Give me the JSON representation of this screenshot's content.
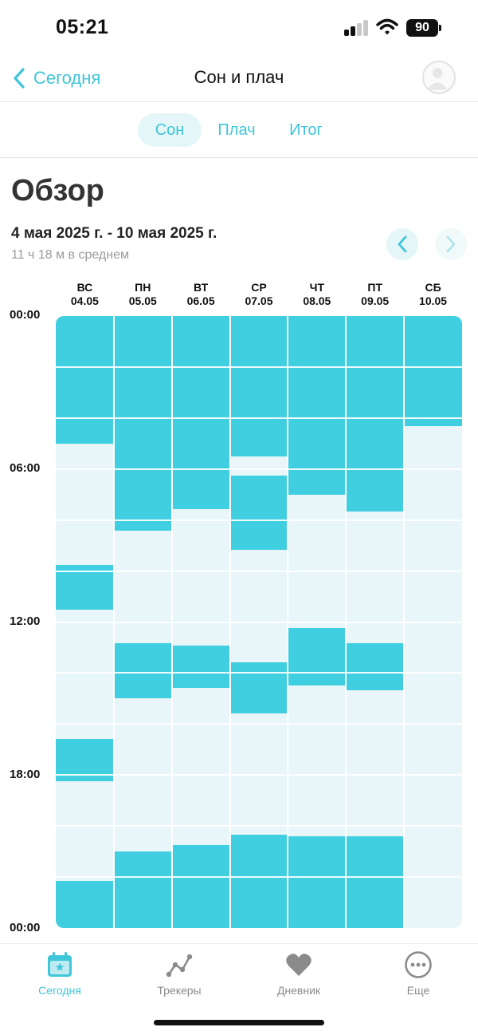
{
  "status_bar": {
    "time": "05:21",
    "battery": "90"
  },
  "header": {
    "back_label": "Сегодня",
    "title": "Сон и плач"
  },
  "tabs": [
    {
      "label": "Сон",
      "active": true
    },
    {
      "label": "Плач",
      "active": false
    },
    {
      "label": "Итог",
      "active": false
    }
  ],
  "overview": {
    "title": "Обзор",
    "date_range": "4 мая 2025 г. - 10 мая 2025 г.",
    "average": "11 ч 18 м в среднем"
  },
  "chart_data": {
    "type": "bar",
    "y_labels": [
      "00:00",
      "06:00",
      "12:00",
      "18:00",
      "00:00"
    ],
    "days": [
      {
        "dow": "ВС",
        "date": "04.05",
        "sleep": [
          [
            "00:00",
            "05:00"
          ],
          [
            "09:45",
            "11:30"
          ],
          [
            "16:35",
            "18:15"
          ],
          [
            "22:10",
            "24:00"
          ]
        ]
      },
      {
        "dow": "ПН",
        "date": "05.05",
        "sleep": [
          [
            "00:00",
            "08:25"
          ],
          [
            "12:50",
            "15:00"
          ],
          [
            "21:00",
            "24:00"
          ]
        ]
      },
      {
        "dow": "ВТ",
        "date": "06.05",
        "sleep": [
          [
            "00:00",
            "07:35"
          ],
          [
            "12:55",
            "14:35"
          ],
          [
            "20:45",
            "24:00"
          ]
        ]
      },
      {
        "dow": "СР",
        "date": "07.05",
        "sleep": [
          [
            "00:00",
            "05:30"
          ],
          [
            "06:15",
            "09:10"
          ],
          [
            "13:35",
            "15:35"
          ],
          [
            "20:20",
            "24:00"
          ]
        ]
      },
      {
        "dow": "ЧТ",
        "date": "08.05",
        "sleep": [
          [
            "00:00",
            "07:00"
          ],
          [
            "12:15",
            "14:30"
          ],
          [
            "20:25",
            "24:00"
          ]
        ]
      },
      {
        "dow": "ПТ",
        "date": "09.05",
        "sleep": [
          [
            "00:00",
            "07:40"
          ],
          [
            "12:50",
            "14:40"
          ],
          [
            "20:25",
            "24:00"
          ]
        ]
      },
      {
        "dow": "СБ",
        "date": "10.05",
        "sleep": [
          [
            "00:00",
            "04:20"
          ]
        ]
      }
    ],
    "sleep_color": "#40cfe0",
    "awake_color": "#e8f6f9"
  },
  "tab_bar": [
    {
      "label": "Сегодня",
      "icon": "calendar-star-icon",
      "active": true
    },
    {
      "label": "Трекеры",
      "icon": "trend-line-icon",
      "active": false
    },
    {
      "label": "Дневник",
      "icon": "heart-icon",
      "active": false
    },
    {
      "label": "Еще",
      "icon": "more-dots-icon",
      "active": false
    }
  ],
  "colors": {
    "accent": "#3fc6d9",
    "accent_light": "#e4f6f8",
    "sleep": "#40cfe0"
  }
}
